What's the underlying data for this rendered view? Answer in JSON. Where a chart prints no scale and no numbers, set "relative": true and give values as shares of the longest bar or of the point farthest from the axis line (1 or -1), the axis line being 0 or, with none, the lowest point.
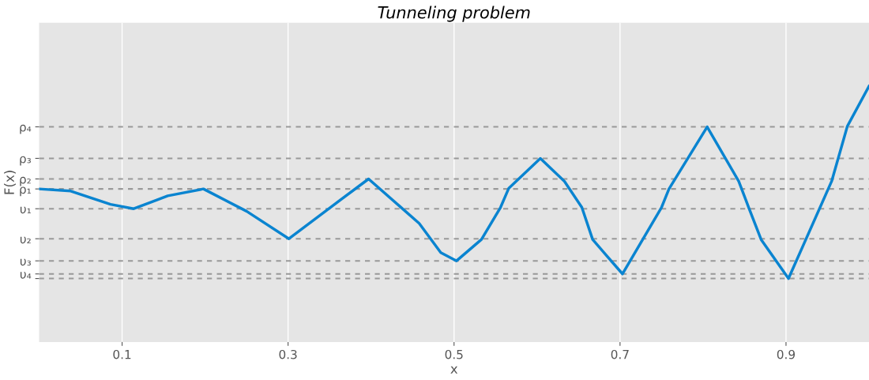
{
  "chart_data": {
    "type": "line",
    "title": "Tunneling problem",
    "xlabel": "x",
    "ylabel": "F(x)",
    "relative": true,
    "xlim": [
      0,
      1
    ],
    "xticks": [
      0.1,
      0.3,
      0.5,
      0.7,
      0.9
    ],
    "grid": "x",
    "line_style": "solid",
    "x": [
      0,
      0.038,
      0.086,
      0.114,
      0.155,
      0.198,
      0.25,
      0.301,
      0.351,
      0.397,
      0.458,
      0.484,
      0.503,
      0.533,
      0.556,
      0.566,
      0.604,
      0.633,
      0.654,
      0.667,
      0.703,
      0.75,
      0.759,
      0.805,
      0.843,
      0.855,
      0.87,
      0.903,
      0.955,
      0.974,
      1.0
    ],
    "series": [
      {
        "color": "#0a84d0",
        "values": [
          0.466,
          0.455,
          0.386,
          0.363,
          0.43,
          0.466,
          0.35,
          0.207,
          0.37,
          0.518,
          0.287,
          0.135,
          0.092,
          0.203,
          0.37,
          0.47,
          0.625,
          0.506,
          0.37,
          0.203,
          0.024,
          0.37,
          0.466,
          0.789,
          0.506,
          0.37,
          0.203,
          0,
          0.506,
          0.793,
          1.0
        ]
      }
    ],
    "ref_lines": [
      {
        "axis": "y",
        "value": 0.789,
        "label": "ρ₄",
        "color": "#999999",
        "line_style": "dashed"
      },
      {
        "axis": "y",
        "value": 0.625,
        "label": "ρ₃",
        "color": "#999999",
        "line_style": "dashed"
      },
      {
        "axis": "y",
        "value": 0.518,
        "label": "ρ₂",
        "color": "#999999",
        "line_style": "dashed"
      },
      {
        "axis": "y",
        "value": 0.466,
        "label": "ρ₁",
        "color": "#999999",
        "line_style": "dashed"
      },
      {
        "axis": "y",
        "value": 0.363,
        "label": "υ₁",
        "color": "#999999",
        "line_style": "dashed"
      },
      {
        "axis": "y",
        "value": 0.207,
        "label": "υ₂",
        "color": "#999999",
        "line_style": "dashed"
      },
      {
        "axis": "y",
        "value": 0.092,
        "label": "υ₃",
        "color": "#999999",
        "line_style": "dashed"
      },
      {
        "axis": "y",
        "value": 0.024,
        "label": "υ₄",
        "color": "#999999",
        "line_style": "dashed"
      },
      {
        "axis": "y",
        "value": 0,
        "label": null,
        "color": "#999999",
        "line_style": "dashed"
      }
    ]
  }
}
